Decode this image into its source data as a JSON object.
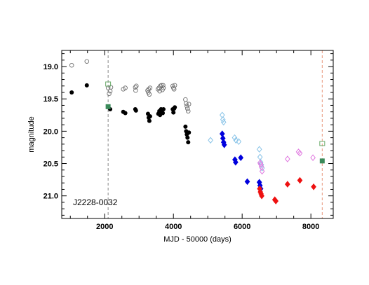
{
  "chart_data": {
    "type": "scatter",
    "title": "",
    "xlabel": "MJD - 50000 (days)",
    "ylabel": "magnitude",
    "xlim": [
      750,
      8650
    ],
    "ylim": [
      21.35,
      18.75
    ],
    "y_inverted": true,
    "x_ticks": [
      2000,
      4000,
      6000,
      8000
    ],
    "x_tick_labels": [
      "2000",
      "4000",
      "6000",
      "8000"
    ],
    "y_ticks": [
      19.0,
      19.5,
      20.0,
      20.5,
      21.0
    ],
    "y_tick_labels": [
      "19.0",
      "19.5",
      "20.0",
      "20.5",
      "21.0"
    ],
    "annotation": "J2228-0032",
    "grid": false,
    "legend": "none",
    "vlines": [
      {
        "x": 2100,
        "color": "#888888",
        "style": "dashed"
      },
      {
        "x": 8330,
        "color": "#e8967a",
        "style": "dashed"
      }
    ],
    "series": [
      {
        "marker": "open-circle",
        "color": "#707070",
        "points": [
          [
            1040,
            18.98
          ],
          [
            1480,
            18.92
          ],
          [
            2100,
            19.33
          ],
          [
            2160,
            19.38
          ],
          [
            2130,
            19.42
          ],
          [
            2180,
            19.32
          ],
          [
            2540,
            19.35
          ],
          [
            2600,
            19.33
          ],
          [
            2890,
            19.32
          ],
          [
            2920,
            19.3
          ],
          [
            2900,
            19.37
          ],
          [
            3250,
            19.37
          ],
          [
            3270,
            19.4
          ],
          [
            3300,
            19.43
          ],
          [
            3280,
            19.35
          ],
          [
            3320,
            19.33
          ],
          [
            3550,
            19.35
          ],
          [
            3580,
            19.33
          ],
          [
            3600,
            19.38
          ],
          [
            3620,
            19.3
          ],
          [
            3650,
            19.29
          ],
          [
            3680,
            19.36
          ],
          [
            3700,
            19.29
          ],
          [
            3710,
            19.33
          ],
          [
            3980,
            19.3
          ],
          [
            4000,
            19.33
          ],
          [
            4020,
            19.35
          ],
          [
            4040,
            19.29
          ],
          [
            4350,
            19.51
          ],
          [
            4370,
            19.57
          ],
          [
            4390,
            19.61
          ],
          [
            4410,
            19.65
          ],
          [
            4430,
            19.69
          ],
          [
            4450,
            19.58
          ]
        ]
      },
      {
        "marker": "filled-circle",
        "color": "#000000",
        "points": [
          [
            1040,
            19.4
          ],
          [
            1480,
            19.29
          ],
          [
            2100,
            19.62
          ],
          [
            2160,
            19.66
          ],
          [
            2540,
            19.7
          ],
          [
            2600,
            19.72
          ],
          [
            2890,
            19.66
          ],
          [
            2910,
            19.68
          ],
          [
            3260,
            19.73
          ],
          [
            3280,
            19.79
          ],
          [
            3300,
            19.84
          ],
          [
            3320,
            19.77
          ],
          [
            3560,
            19.73
          ],
          [
            3590,
            19.69
          ],
          [
            3610,
            19.75
          ],
          [
            3640,
            19.66
          ],
          [
            3660,
            19.7
          ],
          [
            3690,
            19.72
          ],
          [
            3710,
            19.66
          ],
          [
            3980,
            19.66
          ],
          [
            4000,
            19.71
          ],
          [
            4020,
            19.65
          ],
          [
            4040,
            19.63
          ],
          [
            4350,
            19.93
          ],
          [
            4370,
            20.0
          ],
          [
            4390,
            20.05
          ],
          [
            4410,
            20.1
          ],
          [
            4430,
            20.17
          ],
          [
            4450,
            20.02
          ]
        ]
      },
      {
        "marker": "open-diamond",
        "color": "#8ac4e8",
        "points": [
          [
            5080,
            20.14
          ],
          [
            5420,
            19.75
          ],
          [
            5440,
            19.82
          ],
          [
            5460,
            19.86
          ],
          [
            5780,
            20.1
          ],
          [
            5820,
            20.14
          ],
          [
            5900,
            20.16
          ],
          [
            6500,
            20.28
          ],
          [
            6520,
            20.4
          ],
          [
            6540,
            20.48
          ],
          [
            6560,
            20.52
          ],
          [
            6580,
            20.57
          ]
        ]
      },
      {
        "marker": "filled-diamond",
        "color": "#0000dd",
        "points": [
          [
            5420,
            20.04
          ],
          [
            5440,
            20.11
          ],
          [
            5460,
            20.17
          ],
          [
            5480,
            20.21
          ],
          [
            5790,
            20.44
          ],
          [
            5810,
            20.48
          ],
          [
            5960,
            20.41
          ],
          [
            6150,
            20.78
          ],
          [
            6500,
            20.79
          ],
          [
            6520,
            20.84
          ],
          [
            6540,
            20.89
          ]
        ]
      },
      {
        "marker": "filled-diamond",
        "color": "#ee1111",
        "points": [
          [
            6510,
            20.89
          ],
          [
            6530,
            20.94
          ],
          [
            6550,
            20.97
          ],
          [
            6570,
            21.0
          ],
          [
            6950,
            21.06
          ],
          [
            6980,
            21.08
          ],
          [
            7320,
            20.82
          ],
          [
            7680,
            20.76
          ],
          [
            8080,
            20.86
          ]
        ]
      },
      {
        "marker": "open-diamond",
        "color": "#e07ae0",
        "points": [
          [
            6520,
            20.49
          ],
          [
            6540,
            20.51
          ],
          [
            6560,
            20.55
          ],
          [
            6580,
            20.62
          ],
          [
            7320,
            20.43
          ],
          [
            7640,
            20.32
          ],
          [
            7680,
            20.34
          ],
          [
            8060,
            20.41
          ]
        ]
      },
      {
        "marker": "open-square",
        "color": "#6aaa6a",
        "points": [
          [
            2100,
            19.27
          ],
          [
            8330,
            20.19
          ]
        ]
      },
      {
        "marker": "filled-square",
        "color": "#3a8a5a",
        "points": [
          [
            2100,
            19.62
          ],
          [
            8330,
            20.46
          ]
        ]
      }
    ]
  }
}
